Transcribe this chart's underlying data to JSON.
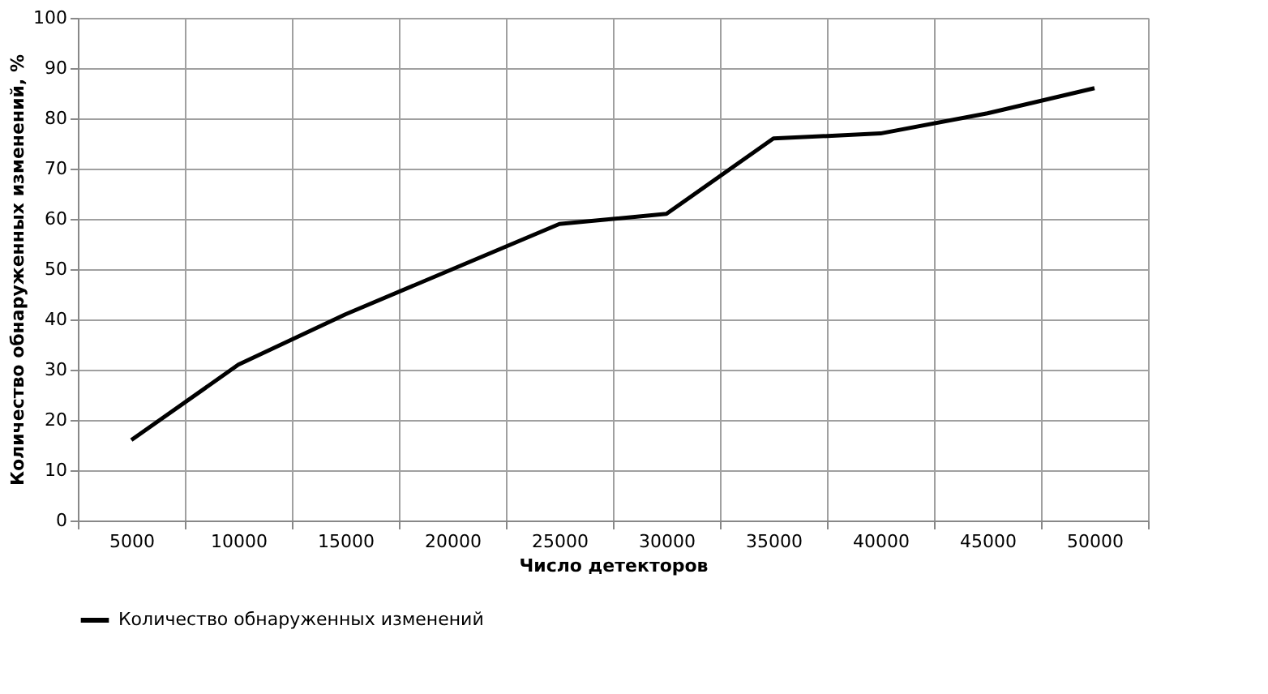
{
  "chart_data": {
    "type": "line",
    "xlabel": "Число детекторов",
    "ylabel": "Количество обнаруженных изменений, %",
    "categories": [
      "5000",
      "10000",
      "15000",
      "20000",
      "25000",
      "30000",
      "35000",
      "40000",
      "45000",
      "50000"
    ],
    "series": [
      {
        "name": "Количество обнаруженных изменений",
        "color": "#000000",
        "values": [
          16,
          31,
          41,
          50,
          59,
          61,
          76,
          77,
          81,
          86
        ]
      }
    ],
    "ylim": [
      0,
      100
    ],
    "yticks": [
      0,
      10,
      20,
      30,
      40,
      50,
      60,
      70,
      80,
      90,
      100
    ],
    "grid": true,
    "legend": "bottom",
    "marker": "none",
    "line_style": "solid"
  }
}
